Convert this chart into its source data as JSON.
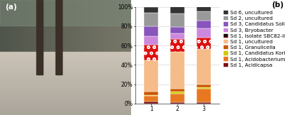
{
  "categories": [
    "1",
    "2",
    "3"
  ],
  "series": [
    {
      "label": "Sd 1, Acidicapsa",
      "color": "#7B1010",
      "values": [
        2,
        1.5,
        1.5
      ]
    },
    {
      "label": "Sd 1, Acidobacterium",
      "color": "#E87820",
      "values": [
        6,
        9,
        14
      ]
    },
    {
      "label": "Sd 1, Candidatus Koribacter",
      "color": "#D4C800",
      "values": [
        1,
        2,
        1
      ]
    },
    {
      "label": "Sd 1, Granulicella",
      "color": "#CC5500",
      "values": [
        3,
        3,
        3
      ]
    },
    {
      "label": "Sd 1, uncultured",
      "color": "#F5BB88",
      "values": [
        33,
        38,
        37
      ]
    },
    {
      "label": "Sd 1, isolate SBC82-like",
      "color": "#DD1111",
      "values": [
        16,
        13,
        12
      ],
      "hatch": "oo"
    },
    {
      "label": "Sd 3, Bryobacter",
      "color": "#CC88DD",
      "values": [
        9,
        6,
        9
      ]
    },
    {
      "label": "Sd 3, Candidatus Solibacter",
      "color": "#8855BB",
      "values": [
        10,
        7,
        8
      ]
    },
    {
      "label": "Sd 2, uncultured",
      "color": "#999999",
      "values": [
        14,
        14,
        10
      ]
    },
    {
      "label": "Sd 6, uncultured",
      "color": "#333333",
      "values": [
        6,
        7,
        5
      ]
    }
  ],
  "ylim": [
    0,
    100
  ],
  "yticks": [
    0,
    20,
    40,
    60,
    80,
    100
  ],
  "yticklabels": [
    "0%",
    "20%",
    "40%",
    "60%",
    "80%",
    "100%"
  ],
  "panel_label_a": "(a)",
  "panel_label_b": "(b)",
  "bar_width": 0.55,
  "legend_fontsize": 5.2,
  "tick_fontsize": 5.5,
  "panel_fontsize": 7.5
}
